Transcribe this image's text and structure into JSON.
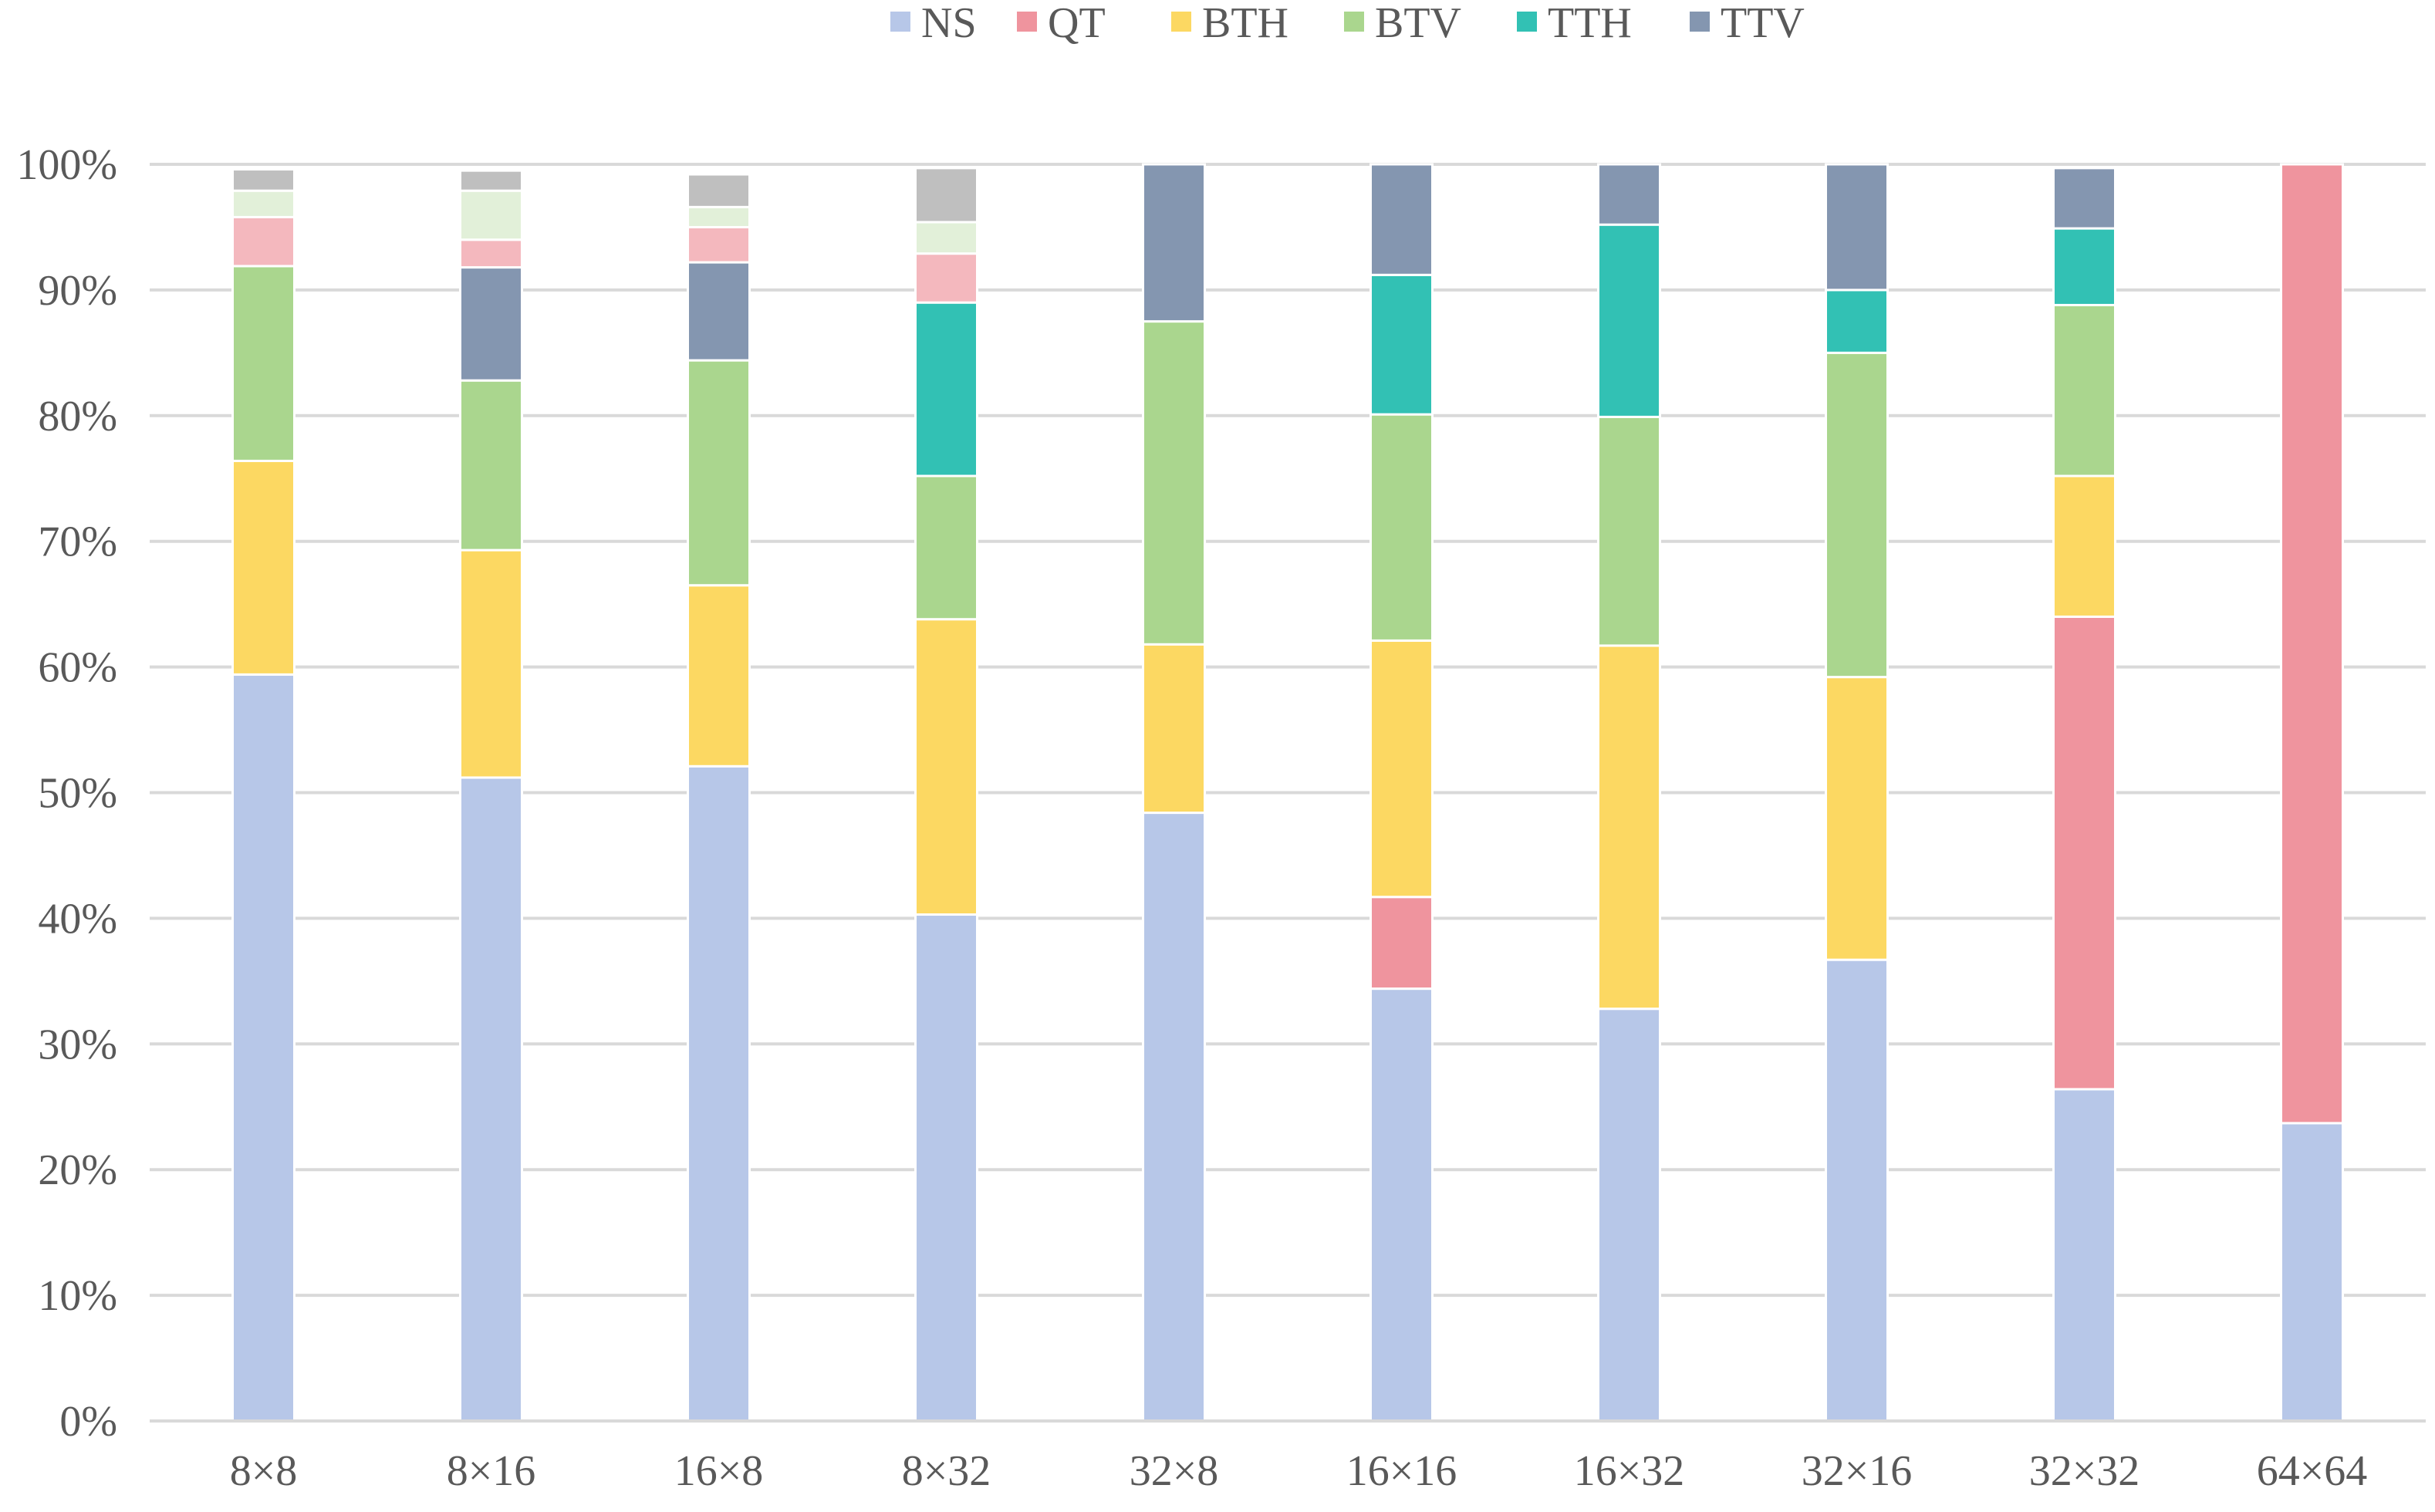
{
  "chart_data": {
    "type": "bar",
    "stacked": true,
    "title": "",
    "xlabel": "",
    "ylabel": "",
    "ylim": [
      0,
      100
    ],
    "y_ticks": [
      "0%",
      "10%",
      "20%",
      "30%",
      "40%",
      "50%",
      "60%",
      "70%",
      "80%",
      "90%",
      "100%"
    ],
    "legend_position": "top-center",
    "grid": true,
    "categories": [
      "8×8",
      "8×16",
      "16×8",
      "8×32",
      "32×8",
      "16×16",
      "16×32",
      "32×16",
      "32×32",
      "64×64"
    ],
    "series": [
      {
        "name": "NS",
        "color": "#b7c7e8",
        "values": [
          59.4,
          51.2,
          52.1,
          40.3,
          48.4,
          34.4,
          32.8,
          36.7,
          26.4,
          23.7
        ]
      },
      {
        "name": "QT",
        "color": "#ef949e",
        "values": [
          0,
          0,
          0,
          0,
          0,
          7.3,
          0,
          0,
          37.6,
          76.3
        ]
      },
      {
        "name": "BTH",
        "color": "#fcd862",
        "values": [
          17.0,
          18.1,
          14.4,
          23.5,
          13.4,
          20.4,
          28.9,
          22.5,
          11.2,
          0
        ]
      },
      {
        "name": "BTV",
        "color": "#aad68e",
        "values": [
          15.5,
          13.5,
          17.9,
          11.4,
          25.7,
          18.0,
          18.2,
          25.8,
          13.6,
          0
        ]
      },
      {
        "name": "TTH",
        "color": "#32c1b4",
        "values": [
          0,
          0,
          0,
          13.8,
          0,
          11.1,
          15.3,
          5.0,
          6.1,
          0
        ]
      },
      {
        "name": "TTV",
        "color": "#8496b0",
        "values": [
          0,
          9.0,
          7.8,
          0,
          12.5,
          8.8,
          4.8,
          10.0,
          4.8,
          0
        ]
      }
    ],
    "unlabeled_segments": [
      {
        "color": "#f4b8be",
        "values": [
          3.9,
          2.2,
          2.8,
          3.9,
          0,
          0,
          0,
          0,
          0,
          0
        ]
      },
      {
        "color": "#e2f0d9",
        "values": [
          2.1,
          3.9,
          1.6,
          2.5,
          0,
          0,
          0,
          0,
          0,
          0
        ]
      },
      {
        "color": "#bfbfbf",
        "values": [
          1.7,
          1.6,
          2.6,
          4.3,
          0,
          0,
          0,
          0,
          0,
          0
        ]
      }
    ]
  }
}
